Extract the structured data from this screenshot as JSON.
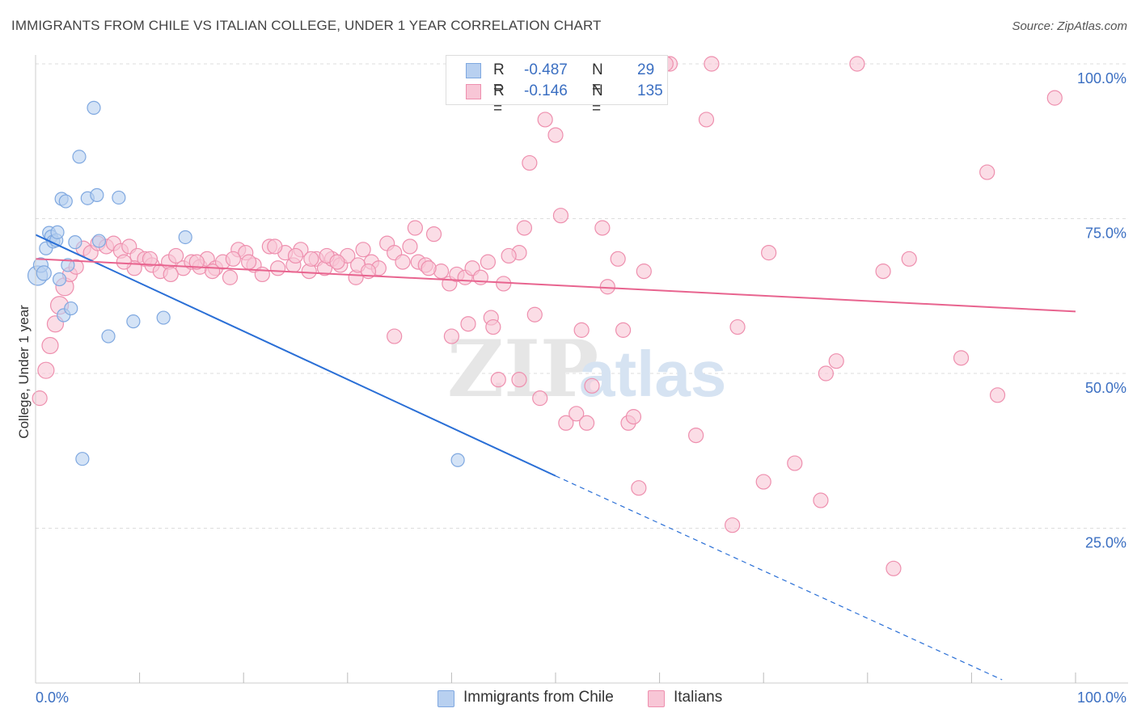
{
  "title": "IMMIGRANTS FROM CHILE VS ITALIAN COLLEGE, UNDER 1 YEAR CORRELATION CHART",
  "source": "Source: ZipAtlas.com",
  "watermark": {
    "zip": "ZIP",
    "atlas": "atlas"
  },
  "colors": {
    "blue_fill": "#b8d0f0",
    "blue_stroke": "#7fa8e0",
    "blue_line": "#2a6fd6",
    "pink_fill": "#f8c6d6",
    "pink_stroke": "#ee8fae",
    "pink_line": "#e8648f",
    "tick_label": "#3b6fc2",
    "grid": "#dddddd"
  },
  "legend": {
    "rows": [
      {
        "r_label": "R =",
        "r_value": "-0.487",
        "n_label": "N =",
        "n_value": "29",
        "series": "blue"
      },
      {
        "r_label": "R =",
        "r_value": "-0.146",
        "n_label": "N =",
        "n_value": "135",
        "series": "pink"
      }
    ]
  },
  "bottom_legend": [
    "Immigrants from Chile",
    "Italians"
  ],
  "chart_data": {
    "type": "scatter",
    "title": "IMMIGRANTS FROM CHILE VS ITALIAN COLLEGE, UNDER 1 YEAR CORRELATION CHART",
    "xlabel": "",
    "ylabel": "College, Under 1 year",
    "xlim": [
      0,
      100
    ],
    "ylim": [
      0,
      100
    ],
    "x_tick_labels": [
      "0.0%",
      "100.0%"
    ],
    "y_ticks": [
      25,
      50,
      75,
      100
    ],
    "y_tick_labels": [
      "25.0%",
      "50.0%",
      "75.0%",
      "100.0%"
    ],
    "grid": true,
    "legend_position": "top-center",
    "series": [
      {
        "name": "Immigrants from Chile",
        "color": "blue",
        "trend": {
          "x0": 0,
          "y0": 72.4,
          "x1": 100,
          "y1": -5.5,
          "solid_until_x": 50
        },
        "points": [
          [
            0.2,
            65.8,
            12
          ],
          [
            0.5,
            67.5,
            9
          ],
          [
            0.8,
            66.2,
            9
          ],
          [
            1.0,
            70.2,
            8
          ],
          [
            1.3,
            72.7,
            8
          ],
          [
            1.5,
            72.1,
            8
          ],
          [
            1.7,
            71.3,
            8
          ],
          [
            2.0,
            71.5,
            8
          ],
          [
            2.1,
            72.8,
            8
          ],
          [
            2.3,
            65.2,
            8
          ],
          [
            2.5,
            78.2,
            8
          ],
          [
            2.7,
            59.4,
            8
          ],
          [
            2.9,
            77.8,
            8
          ],
          [
            3.1,
            67.5,
            8
          ],
          [
            3.4,
            60.5,
            8
          ],
          [
            3.8,
            71.2,
            8
          ],
          [
            4.2,
            85.0,
            8
          ],
          [
            4.5,
            36.2,
            8
          ],
          [
            5.0,
            78.3,
            8
          ],
          [
            5.6,
            92.9,
            8
          ],
          [
            5.9,
            78.8,
            8
          ],
          [
            6.1,
            71.4,
            8
          ],
          [
            7.0,
            56.0,
            8
          ],
          [
            8.0,
            78.4,
            8
          ],
          [
            9.4,
            58.4,
            8
          ],
          [
            12.3,
            59.0,
            8
          ],
          [
            14.4,
            72.0,
            8
          ],
          [
            40.6,
            36.0,
            8
          ]
        ]
      },
      {
        "name": "Italians",
        "color": "pink",
        "trend": {
          "x0": 0,
          "y0": 68.5,
          "x1": 100,
          "y1": 60.0,
          "solid_until_x": 100
        },
        "points": [
          [
            0.4,
            46.0,
            9
          ],
          [
            1.0,
            50.5,
            10
          ],
          [
            1.4,
            54.5,
            10
          ],
          [
            1.9,
            58.0,
            10
          ],
          [
            2.3,
            61.0,
            11
          ],
          [
            2.8,
            64.0,
            11
          ],
          [
            3.3,
            66.0,
            9
          ],
          [
            3.9,
            67.2,
            9
          ],
          [
            4.6,
            70.2,
            9
          ],
          [
            5.3,
            69.5,
            9
          ],
          [
            6.0,
            71.0,
            9
          ],
          [
            6.8,
            70.5,
            9
          ],
          [
            7.5,
            71.0,
            9
          ],
          [
            8.2,
            69.8,
            9
          ],
          [
            9.0,
            70.5,
            9
          ],
          [
            9.8,
            69.0,
            9
          ],
          [
            10.5,
            68.5,
            9
          ],
          [
            11.2,
            67.5,
            9
          ],
          [
            12.0,
            66.5,
            9
          ],
          [
            12.8,
            68.0,
            9
          ],
          [
            13.5,
            69.0,
            9
          ],
          [
            14.2,
            67.0,
            9
          ],
          [
            15.0,
            68.0,
            9
          ],
          [
            15.8,
            67.2,
            9
          ],
          [
            16.5,
            68.5,
            9
          ],
          [
            17.3,
            67.0,
            9
          ],
          [
            18.0,
            68.0,
            9
          ],
          [
            18.7,
            65.5,
            9
          ],
          [
            19.5,
            70.0,
            9
          ],
          [
            20.2,
            69.5,
            9
          ],
          [
            21.0,
            67.5,
            9
          ],
          [
            21.8,
            66.0,
            9
          ],
          [
            22.5,
            70.5,
            9
          ],
          [
            23.3,
            67.0,
            9
          ],
          [
            24.0,
            69.5,
            9
          ],
          [
            24.8,
            67.5,
            9
          ],
          [
            25.5,
            70.0,
            9
          ],
          [
            26.3,
            66.5,
            9
          ],
          [
            27.0,
            68.5,
            9
          ],
          [
            27.8,
            67.0,
            9
          ],
          [
            28.5,
            68.5,
            9
          ],
          [
            29.3,
            67.5,
            9
          ],
          [
            30.0,
            69.0,
            9
          ],
          [
            30.8,
            65.5,
            9
          ],
          [
            31.5,
            70.0,
            9
          ],
          [
            32.3,
            68.0,
            9
          ],
          [
            33.0,
            67.0,
            9
          ],
          [
            33.8,
            71.0,
            9
          ],
          [
            34.5,
            69.5,
            9
          ],
          [
            35.3,
            68.0,
            9
          ],
          [
            36.0,
            70.5,
            9
          ],
          [
            36.8,
            68.0,
            9
          ],
          [
            37.5,
            67.5,
            9
          ],
          [
            38.3,
            72.5,
            9
          ],
          [
            39.0,
            66.5,
            9
          ],
          [
            39.8,
            64.5,
            9
          ],
          [
            40.5,
            66.0,
            9
          ],
          [
            41.3,
            65.5,
            9
          ],
          [
            42.0,
            67.0,
            9
          ],
          [
            42.8,
            65.5,
            9
          ],
          [
            43.5,
            68.0,
            9
          ],
          [
            45.0,
            64.5,
            9
          ],
          [
            46.5,
            69.5,
            9
          ],
          [
            47.0,
            73.5,
            9
          ],
          [
            34.5,
            56.0,
            9
          ],
          [
            36.5,
            73.5,
            9
          ],
          [
            37.8,
            67.0,
            9
          ],
          [
            40.0,
            56.0,
            9
          ],
          [
            41.6,
            58.0,
            9
          ],
          [
            43.8,
            59.0,
            9
          ],
          [
            44.0,
            57.5,
            9
          ],
          [
            44.5,
            49.0,
            9
          ],
          [
            45.5,
            69.0,
            9
          ],
          [
            46.5,
            49.0,
            9
          ],
          [
            47.5,
            84.0,
            9
          ],
          [
            48.0,
            59.5,
            9
          ],
          [
            48.5,
            46.0,
            9
          ],
          [
            49.0,
            91.0,
            9
          ],
          [
            50.0,
            88.5,
            9
          ],
          [
            50.5,
            75.5,
            9
          ],
          [
            51.0,
            42.0,
            9
          ],
          [
            52.0,
            43.5,
            9
          ],
          [
            52.5,
            57.0,
            9
          ],
          [
            53.0,
            42.0,
            9
          ],
          [
            53.5,
            48.0,
            9
          ],
          [
            54.5,
            73.5,
            9
          ],
          [
            55.0,
            64.0,
            9
          ],
          [
            56.0,
            68.5,
            9
          ],
          [
            56.5,
            57.0,
            9
          ],
          [
            57.0,
            42.0,
            9
          ],
          [
            57.5,
            43.0,
            9
          ],
          [
            58.0,
            31.5,
            9
          ],
          [
            58.5,
            66.5,
            9
          ],
          [
            61.0,
            100.0,
            9
          ],
          [
            64.5,
            91.0,
            9
          ],
          [
            63.5,
            40.0,
            9
          ],
          [
            65.0,
            100.0,
            9
          ],
          [
            67.0,
            25.5,
            9
          ],
          [
            67.5,
            57.5,
            9
          ],
          [
            70.0,
            32.5,
            9
          ],
          [
            70.5,
            69.5,
            9
          ],
          [
            73.0,
            35.5,
            9
          ],
          [
            75.5,
            29.5,
            9
          ],
          [
            76.0,
            50.0,
            9
          ],
          [
            77.0,
            52.0,
            9
          ],
          [
            79.0,
            100.0,
            9
          ],
          [
            81.5,
            66.5,
            9
          ],
          [
            82.5,
            18.5,
            9
          ],
          [
            84.0,
            68.5,
            9
          ],
          [
            89.0,
            52.5,
            9
          ],
          [
            91.5,
            82.5,
            9
          ],
          [
            92.5,
            46.5,
            9
          ],
          [
            98.0,
            94.5,
            9
          ],
          [
            59.0,
            100.0,
            8
          ],
          [
            60.6,
            100.0,
            9
          ],
          [
            26.5,
            68.5,
            9
          ],
          [
            28.0,
            69.0,
            9
          ],
          [
            29.0,
            68.0,
            9
          ],
          [
            31.0,
            67.5,
            9
          ],
          [
            32.0,
            66.5,
            9
          ],
          [
            25.0,
            69.0,
            9
          ],
          [
            23.0,
            70.5,
            9
          ],
          [
            20.5,
            68.0,
            9
          ],
          [
            19.0,
            68.5,
            9
          ],
          [
            17.0,
            66.5,
            9
          ],
          [
            15.5,
            68.0,
            9
          ],
          [
            13.0,
            66.0,
            9
          ],
          [
            11.0,
            68.5,
            9
          ],
          [
            9.5,
            67.0,
            9
          ],
          [
            8.5,
            68.0,
            9
          ]
        ]
      }
    ]
  }
}
